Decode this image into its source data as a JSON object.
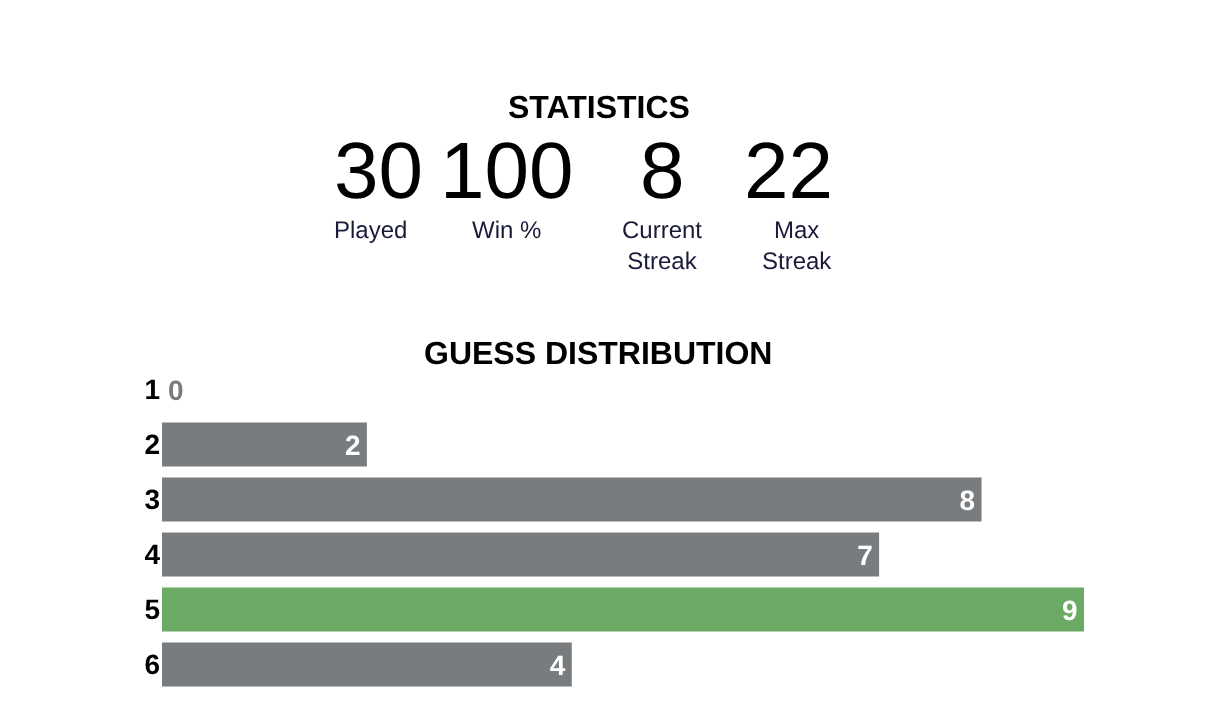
{
  "chart_data": [
    {
      "type": "other",
      "title": "STATISTICS",
      "categories": [
        "Played",
        "Win %",
        "Current Streak",
        "Max Streak"
      ],
      "values": [
        30,
        100,
        8,
        22
      ],
      "data_labels": true
    },
    {
      "type": "bar",
      "orientation": "horizontal",
      "title": "GUESS DISTRIBUTION",
      "categories": [
        "1",
        "2",
        "3",
        "4",
        "5",
        "6"
      ],
      "values": [
        0,
        2,
        8,
        7,
        9,
        4
      ],
      "colors": [
        "#787c7e",
        "#787c7e",
        "#787c7e",
        "#787c7e",
        "#6aaa64",
        "#787c7e"
      ],
      "data_labels": true
    }
  ]
}
